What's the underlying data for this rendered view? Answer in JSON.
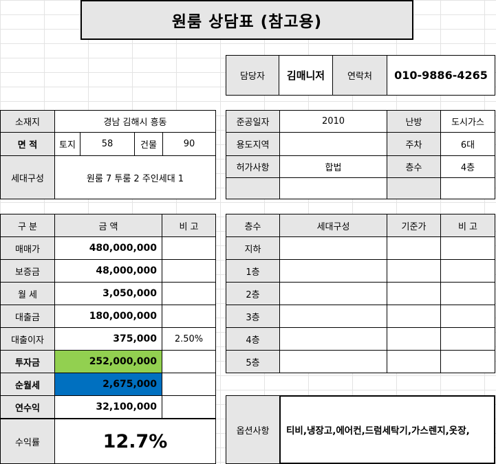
{
  "title": "원룸 상담표 (참고용)",
  "contact": {
    "manager_label": "담당자",
    "manager": "김매니저",
    "phone_label": "연락처",
    "phone": "010-9886-4265"
  },
  "property": {
    "location_label": "소재지",
    "location": "경남 김해시 흥동",
    "area_label": "면 적",
    "land_label": "토지",
    "land": "58",
    "building_label": "건물",
    "building": "90",
    "units_label": "세대구성",
    "units": "원룸 7 투룸 2 주인세대 1"
  },
  "building_info": {
    "completion_label": "준공일자",
    "completion": "2010",
    "heating_label": "난방",
    "heating": "도시가스",
    "zoning_label": "용도지역",
    "zoning": "",
    "parking_label": "주차",
    "parking": "6대",
    "permit_label": "허가사항",
    "permit": "합법",
    "floors_label": "층수",
    "floors": "4층"
  },
  "finance": {
    "h_category": "구 분",
    "h_amount": "금 액",
    "h_note": "비 고",
    "rows": [
      {
        "label": "매매가",
        "amount": "480,000,000",
        "note": ""
      },
      {
        "label": "보증금",
        "amount": "48,000,000",
        "note": ""
      },
      {
        "label": "월 세",
        "amount": "3,050,000",
        "note": ""
      },
      {
        "label": "대출금",
        "amount": "180,000,000",
        "note": ""
      },
      {
        "label": "대출이자",
        "amount": "375,000",
        "note": "2.50%"
      },
      {
        "label": "투자금",
        "amount": "252,000,000",
        "note": ""
      },
      {
        "label": "순월세",
        "amount": "2,675,000",
        "note": ""
      },
      {
        "label": "연수익",
        "amount": "32,100,000",
        "note": ""
      }
    ],
    "yield_label": "수익률",
    "yield": "12.7%"
  },
  "floors_table": {
    "h_floor": "층수",
    "h_units": "세대구성",
    "h_base": "기준가",
    "h_note": "비 고",
    "rows": [
      "지하",
      "1층",
      "2층",
      "3층",
      "4층",
      "5층"
    ]
  },
  "options": {
    "label": "옵션사항",
    "value": "티비,냉장고,에어컨,드럼세탁기,가스렌지,옷장,"
  },
  "colors": {
    "investment": "#92d050",
    "net_rent": "#0070c0",
    "label_bg": "#e6e6e6"
  }
}
